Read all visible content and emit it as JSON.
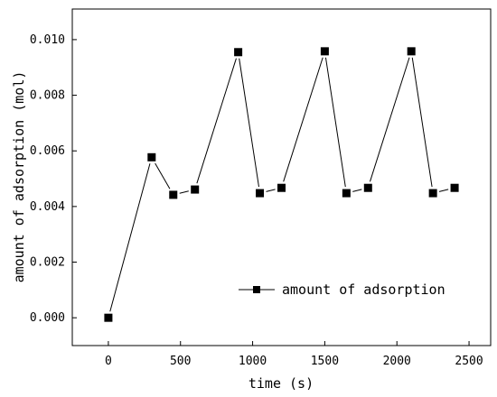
{
  "chart_data": {
    "type": "line",
    "xlabel": "time (s)",
    "ylabel": "amount of adsorption (mol)",
    "xlim": [
      -250,
      2650
    ],
    "ylim": [
      -0.001,
      0.0111
    ],
    "xticks": [
      0,
      500,
      1000,
      1500,
      2000,
      2500
    ],
    "xtick_labels": [
      "0",
      "500",
      "1000",
      "1500",
      "2000",
      "2500"
    ],
    "yticks": [
      0,
      0.002,
      0.004,
      0.006,
      0.008,
      0.01
    ],
    "ytick_labels": [
      "0.000",
      "0.002",
      "0.004",
      "0.006",
      "0.008",
      "0.010"
    ],
    "grid": false,
    "legend_position": "bottom-right",
    "series": [
      {
        "name": "amount of adsorption",
        "marker": "square",
        "color": "#000000",
        "x": [
          0,
          300,
          450,
          600,
          900,
          1050,
          1200,
          1500,
          1650,
          1800,
          2100,
          2250,
          2400
        ],
        "y": [
          0.0,
          0.00577,
          0.00442,
          0.00461,
          0.00955,
          0.00448,
          0.00467,
          0.00958,
          0.00448,
          0.00467,
          0.00958,
          0.00448,
          0.00467
        ]
      }
    ]
  }
}
